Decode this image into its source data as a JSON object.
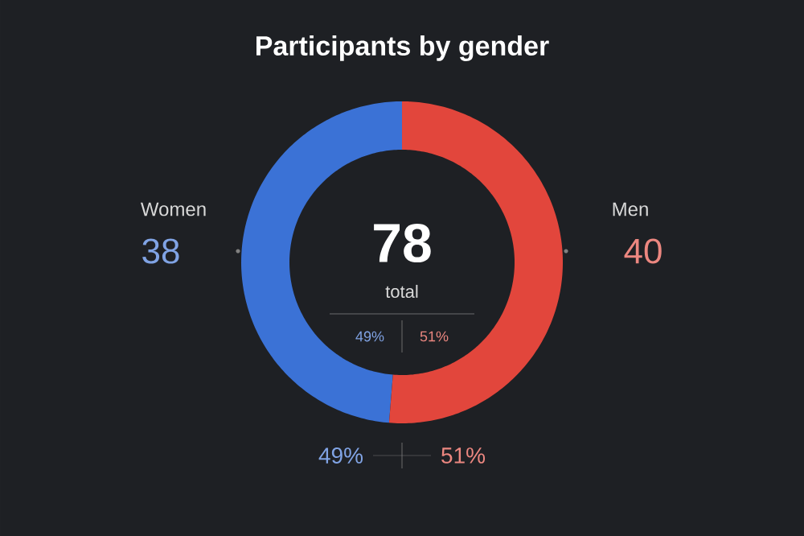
{
  "chart_data": {
    "type": "donut",
    "title": "Participants by gender",
    "categories": [
      "Women",
      "Men"
    ],
    "values": [
      38,
      40
    ],
    "colors": [
      "#3b72d6",
      "#e2463c"
    ],
    "data_labels": true,
    "annotations": [
      "78",
      "total",
      "49%",
      "51%",
      "49%",
      "51%"
    ]
  }
}
